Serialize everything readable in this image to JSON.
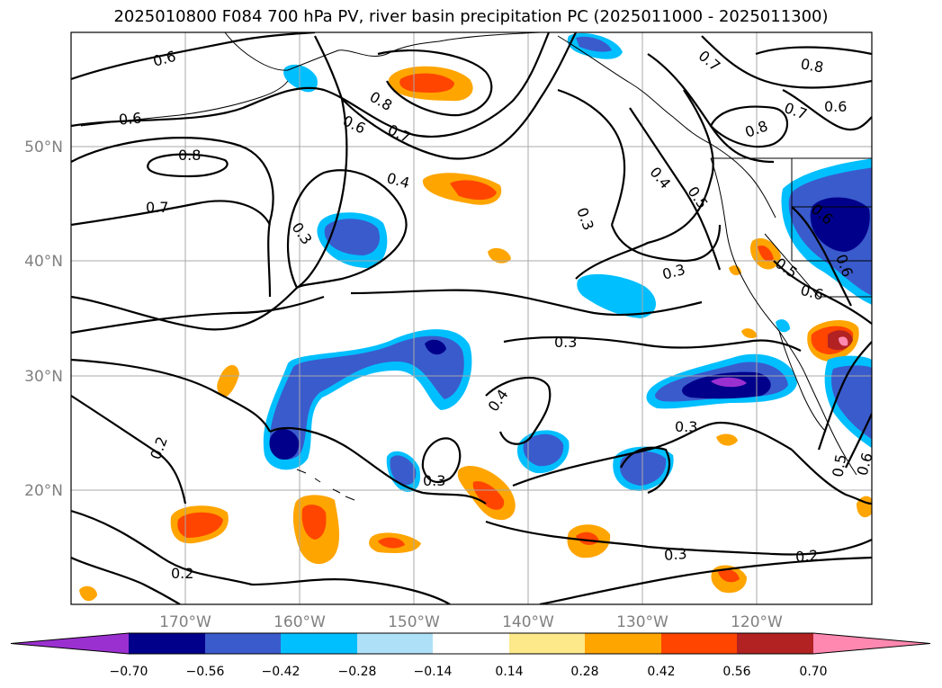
{
  "title": "2025010800 F084 700 hPa PV, river basin precipitation PC (2025011000 - 2025011300)",
  "map": {
    "lat_labels": [
      "50°N",
      "40°N",
      "30°N",
      "20°N"
    ],
    "lon_labels": [
      "170°W",
      "160°W",
      "150°W",
      "140°W",
      "130°W",
      "120°W"
    ],
    "gridlines": true,
    "contour_labels": [
      "0.6",
      "0.6",
      "0.8",
      "0.7",
      "0.8",
      "0.6",
      "0.7",
      "0.4",
      "0.3",
      "0.3",
      "0.4",
      "0.3",
      "0.2",
      "0.3",
      "0.3",
      "0.3",
      "0.2",
      "0.2",
      "0.3",
      "0.7",
      "0.8",
      "0.7",
      "0.6",
      "0.8",
      "0.4",
      "0.5",
      "0.6",
      "0.6",
      "0.5",
      "0.6",
      "0.5",
      "0.6"
    ]
  },
  "colorbar": {
    "ticks": [
      "−0.70",
      "−0.56",
      "−0.42",
      "−0.28",
      "−0.14",
      "0.14",
      "0.28",
      "0.42",
      "0.56",
      "0.70"
    ],
    "colors": [
      "#9b30d0",
      "#00008b",
      "#3a5bcc",
      "#00bfff",
      "#aee0f7",
      "#ffffff",
      "#fde98a",
      "#ffa500",
      "#ff4500",
      "#b22222",
      "#ff88b0"
    ],
    "extend": "both"
  }
}
